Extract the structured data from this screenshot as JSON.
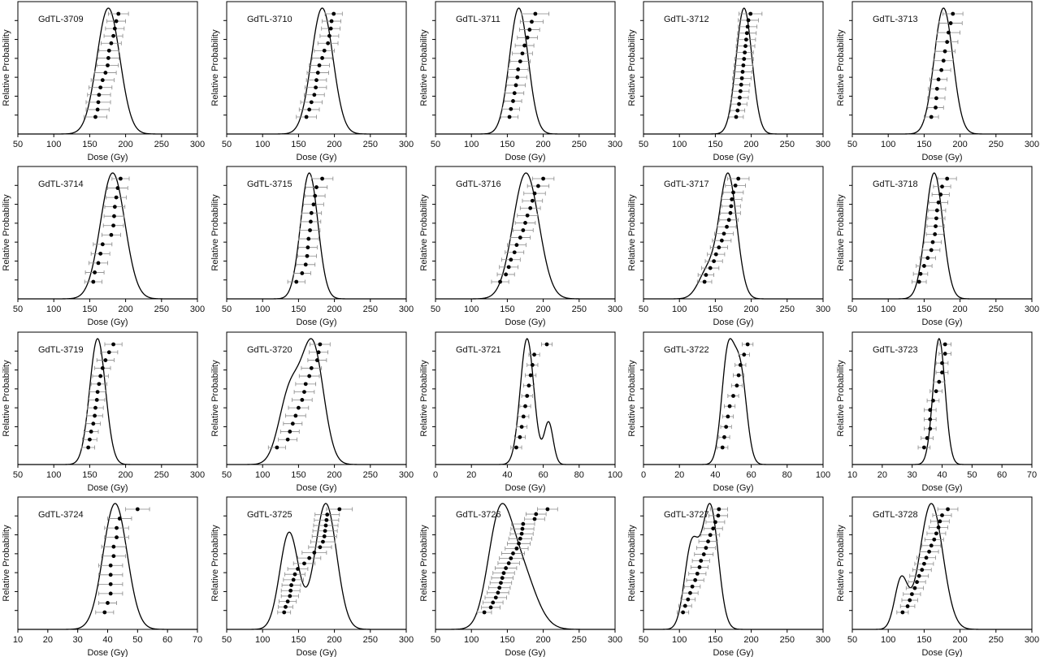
{
  "figure": {
    "xlabel": "Dose (Gy)",
    "ylabel": "Relative Probability"
  },
  "chart_data": [
    {
      "type": "scatter",
      "title": "GdTL-3709",
      "xlabel": "Dose (Gy)",
      "ylabel": "Relative Probability",
      "xlim": [
        50,
        300
      ],
      "xticks": [
        50,
        100,
        150,
        200,
        250,
        300
      ],
      "x": [
        190,
        187,
        185,
        183,
        180,
        177,
        176,
        175,
        172,
        168,
        165,
        163,
        162,
        161,
        158
      ],
      "err": [
        14,
        13,
        13,
        13,
        14,
        14,
        15,
        15,
        15,
        16,
        16,
        16,
        17,
        16,
        16
      ],
      "kde": {
        "peak": 175,
        "components": [
          {
            "mu": 176,
            "sigma": 16,
            "w": 1
          }
        ]
      }
    },
    {
      "type": "scatter",
      "title": "GdTL-3710",
      "xlabel": "Dose (Gy)",
      "ylabel": "Relative Probability",
      "xlim": [
        50,
        300
      ],
      "xticks": [
        50,
        100,
        150,
        200,
        250,
        300
      ],
      "x": [
        199,
        196,
        195,
        193,
        191,
        186,
        183,
        179,
        177,
        175,
        174,
        172,
        168,
        165,
        161
      ],
      "err": [
        12,
        13,
        13,
        13,
        14,
        14,
        14,
        14,
        15,
        14,
        15,
        14,
        15,
        14,
        14
      ],
      "kde": {
        "peak": 182,
        "components": [
          {
            "mu": 183,
            "sigma": 15,
            "w": 1
          }
        ]
      }
    },
    {
      "type": "scatter",
      "title": "GdTL-3711",
      "xlabel": "Dose (Gy)",
      "ylabel": "Relative Probability",
      "xlim": [
        50,
        300
      ],
      "xticks": [
        50,
        100,
        150,
        200,
        250,
        300
      ],
      "x": [
        189,
        184,
        181,
        178,
        174,
        171,
        168,
        165,
        164,
        162,
        160,
        158,
        155,
        153
      ],
      "err": [
        19,
        16,
        14,
        14,
        13,
        14,
        14,
        14,
        13,
        13,
        13,
        12,
        12,
        12
      ],
      "kde": {
        "peak": 166,
        "components": [
          {
            "mu": 166,
            "sigma": 13,
            "w": 1
          }
        ]
      }
    },
    {
      "type": "scatter",
      "title": "GdTL-3712",
      "xlabel": "Dose (Gy)",
      "ylabel": "Relative Probability",
      "xlim": [
        50,
        300
      ],
      "xticks": [
        50,
        100,
        150,
        200,
        250,
        300
      ],
      "x": [
        199,
        196,
        195,
        194,
        193,
        192,
        191,
        190,
        189,
        188,
        187,
        186,
        185,
        184,
        183,
        181,
        179
      ],
      "err": [
        16,
        14,
        13,
        13,
        13,
        13,
        12,
        13,
        13,
        13,
        13,
        12,
        12,
        12,
        11,
        10,
        10
      ],
      "kde": {
        "peak": 189,
        "components": [
          {
            "mu": 190,
            "sigma": 11,
            "w": 1
          }
        ]
      }
    },
    {
      "type": "scatter",
      "title": "GdTL-3713",
      "xlabel": "Dose (Gy)",
      "ylabel": "Relative Probability",
      "xlim": [
        50,
        300
      ],
      "xticks": [
        50,
        100,
        150,
        200,
        250,
        300
      ],
      "x": [
        190,
        187,
        184,
        182,
        179,
        177,
        174,
        170,
        168,
        167,
        166,
        160
      ],
      "err": [
        14,
        16,
        16,
        15,
        14,
        13,
        13,
        12,
        12,
        12,
        11,
        10
      ],
      "kde": {
        "peak": 177,
        "components": [
          {
            "mu": 177,
            "sigma": 13,
            "w": 1
          }
        ]
      }
    },
    {
      "type": "scatter",
      "title": "GdTL-3714",
      "xlabel": "Dose (Gy)",
      "ylabel": "Relative Probability",
      "xlim": [
        50,
        300
      ],
      "xticks": [
        50,
        100,
        150,
        200,
        250,
        300
      ],
      "x": [
        193,
        189,
        187,
        185,
        184,
        183,
        180,
        168,
        165,
        162,
        157,
        155
      ],
      "err": [
        12,
        14,
        14,
        14,
        14,
        14,
        13,
        13,
        13,
        13,
        13,
        12
      ],
      "kde": {
        "peak": 183,
        "components": [
          {
            "mu": 182,
            "sigma": 17,
            "w": 1
          }
        ]
      }
    },
    {
      "type": "scatter",
      "title": "GdTL-3715",
      "xlabel": "Dose (Gy)",
      "ylabel": "Relative Probability",
      "xlim": [
        50,
        300
      ],
      "xticks": [
        50,
        100,
        150,
        200,
        250,
        300
      ],
      "x": [
        183,
        175,
        173,
        171,
        168,
        167,
        166,
        164,
        163,
        162,
        160,
        155,
        147
      ],
      "err": [
        15,
        15,
        14,
        14,
        14,
        14,
        14,
        14,
        13,
        13,
        13,
        12,
        12
      ],
      "kde": {
        "peak": 164,
        "components": [
          {
            "mu": 165,
            "sigma": 12,
            "w": 1
          }
        ]
      }
    },
    {
      "type": "scatter",
      "title": "GdTL-3716",
      "xlabel": "Dose (Gy)",
      "ylabel": "Relative Probability",
      "xlim": [
        50,
        300
      ],
      "xticks": [
        50,
        100,
        150,
        200,
        250,
        300
      ],
      "x": [
        200,
        193,
        188,
        185,
        182,
        178,
        175,
        172,
        168,
        163,
        160,
        155,
        152,
        148,
        140
      ],
      "err": [
        15,
        15,
        15,
        14,
        14,
        14,
        14,
        14,
        14,
        13,
        13,
        13,
        13,
        12,
        12
      ],
      "kde": {
        "peak": 176,
        "components": [
          {
            "mu": 176,
            "sigma": 18,
            "w": 1
          }
        ]
      }
    },
    {
      "type": "scatter",
      "title": "GdTL-3717",
      "xlabel": "Dose (Gy)",
      "ylabel": "Relative Probability",
      "xlim": [
        50,
        300
      ],
      "xticks": [
        50,
        100,
        150,
        200,
        250,
        300
      ],
      "x": [
        182,
        178,
        175,
        173,
        172,
        171,
        169,
        166,
        162,
        159,
        155,
        151,
        148,
        143,
        137,
        135
      ],
      "err": [
        15,
        14,
        14,
        14,
        13,
        14,
        13,
        13,
        13,
        13,
        12,
        12,
        12,
        12,
        11,
        10
      ],
      "kde": {
        "peak": 166,
        "components": [
          {
            "mu": 168,
            "sigma": 12,
            "w": 0.8
          },
          {
            "mu": 140,
            "sigma": 13,
            "w": 0.2
          }
        ]
      }
    },
    {
      "type": "scatter",
      "title": "GdTL-3718",
      "xlabel": "Dose (Gy)",
      "ylabel": "Relative Probability",
      "xlim": [
        50,
        300
      ],
      "xticks": [
        50,
        100,
        150,
        200,
        250,
        300
      ],
      "x": [
        182,
        175,
        173,
        170,
        168,
        167,
        166,
        165,
        162,
        160,
        155,
        150,
        145,
        143
      ],
      "err": [
        13,
        12,
        12,
        13,
        12,
        12,
        12,
        12,
        12,
        12,
        11,
        11,
        10,
        10
      ],
      "kde": {
        "peak": 164,
        "components": [
          {
            "mu": 164,
            "sigma": 12,
            "w": 1
          }
        ]
      }
    },
    {
      "type": "scatter",
      "title": "GdTL-3719",
      "xlabel": "Dose (Gy)",
      "ylabel": "Relative Probability",
      "xlim": [
        50,
        300
      ],
      "xticks": [
        50,
        100,
        150,
        200,
        250,
        300
      ],
      "x": [
        183,
        177,
        172,
        168,
        165,
        163,
        161,
        160,
        158,
        157,
        155,
        152,
        150,
        148
      ],
      "err": [
        12,
        12,
        12,
        11,
        11,
        11,
        11,
        11,
        11,
        11,
        10,
        10,
        10,
        9
      ],
      "kde": {
        "peak": 161,
        "components": [
          {
            "mu": 161,
            "sigma": 11,
            "w": 1
          }
        ]
      }
    },
    {
      "type": "scatter",
      "title": "GdTL-3720",
      "xlabel": "Dose (Gy)",
      "ylabel": "Relative Probability",
      "xlim": [
        50,
        300
      ],
      "xticks": [
        50,
        100,
        150,
        200,
        250,
        300
      ],
      "x": [
        180,
        178,
        176,
        168,
        165,
        160,
        158,
        155,
        150,
        146,
        142,
        138,
        135,
        120
      ],
      "err": [
        14,
        13,
        13,
        14,
        14,
        14,
        14,
        14,
        14,
        14,
        13,
        13,
        13,
        12
      ],
      "kde": {
        "peak": 165,
        "components": [
          {
            "mu": 170,
            "sigma": 15,
            "w": 0.62
          },
          {
            "mu": 138,
            "sigma": 15,
            "w": 0.38
          }
        ]
      }
    },
    {
      "type": "scatter",
      "title": "GdTL-3721",
      "xlabel": "Dose (Gy)",
      "ylabel": "Relative Probability",
      "xlim": [
        0,
        100
      ],
      "xticks": [
        0,
        20,
        40,
        60,
        80,
        100
      ],
      "x": [
        62,
        55,
        54,
        53,
        52,
        51,
        50,
        49,
        48,
        47,
        45
      ],
      "err": [
        3,
        3,
        3,
        3,
        3,
        3,
        3,
        3,
        3,
        3,
        3
      ],
      "kde": {
        "peak": 51,
        "components": [
          {
            "mu": 51,
            "sigma": 3.8,
            "w": 0.82
          },
          {
            "mu": 63,
            "sigma": 2.5,
            "w": 0.18
          }
        ]
      }
    },
    {
      "type": "scatter",
      "title": "GdTL-3722",
      "xlabel": "Dose (Gy)",
      "ylabel": "Relative Probability",
      "xlim": [
        0,
        100
      ],
      "xticks": [
        0,
        20,
        40,
        60,
        80,
        100
      ],
      "x": [
        58,
        56,
        54,
        53,
        52,
        50,
        48,
        47,
        46,
        45,
        44
      ],
      "err": [
        3,
        3,
        3,
        3,
        3,
        3,
        3,
        3,
        3,
        3,
        3
      ],
      "kde": {
        "peak": 48,
        "components": [
          {
            "mu": 47,
            "sigma": 3.5,
            "w": 0.55
          },
          {
            "mu": 54,
            "sigma": 3.5,
            "w": 0.45
          }
        ]
      }
    },
    {
      "type": "scatter",
      "title": "GdTL-3723",
      "xlabel": "Dose (Gy)",
      "ylabel": "Relative Probability",
      "xlim": [
        10,
        70
      ],
      "xticks": [
        10,
        20,
        30,
        40,
        50,
        60,
        70
      ],
      "x": [
        41,
        41,
        40,
        40,
        39,
        38,
        37,
        36,
        36,
        36,
        35,
        34
      ],
      "err": [
        2,
        2,
        2,
        2,
        2,
        2,
        2,
        2,
        2,
        2,
        2,
        2
      ],
      "kde": {
        "peak": 39,
        "components": [
          {
            "mu": 39,
            "sigma": 2,
            "w": 1
          }
        ]
      }
    },
    {
      "type": "scatter",
      "title": "GdTL-3724",
      "xlabel": "Dose (Gy)",
      "ylabel": "Relative Probability",
      "xlim": [
        10,
        70
      ],
      "xticks": [
        10,
        20,
        30,
        40,
        50,
        60,
        70
      ],
      "x": [
        50,
        44,
        43,
        43,
        42,
        42,
        41,
        41,
        41,
        41,
        40,
        39
      ],
      "err": [
        4,
        4,
        4,
        4,
        4,
        4,
        4,
        4,
        4,
        4,
        3,
        3
      ],
      "kde": {
        "peak": 42,
        "components": [
          {
            "mu": 42.5,
            "sigma": 4,
            "w": 1
          }
        ]
      }
    },
    {
      "type": "scatter",
      "title": "GdTL-3725",
      "xlabel": "Dose (Gy)",
      "ylabel": "Relative Probability",
      "xlim": [
        50,
        300
      ],
      "xticks": [
        50,
        100,
        150,
        200,
        250,
        300
      ],
      "x": [
        207,
        190,
        189,
        188,
        187,
        186,
        184,
        180,
        172,
        165,
        158,
        149,
        145,
        143,
        140,
        139,
        138,
        135,
        132,
        130
      ],
      "err": [
        18,
        17,
        17,
        17,
        17,
        17,
        17,
        16,
        17,
        16,
        15,
        14,
        14,
        14,
        13,
        13,
        12,
        12,
        10,
        9
      ],
      "kde": {
        "peak": 187,
        "components": [
          {
            "mu": 137,
            "sigma": 13,
            "w": 0.4
          },
          {
            "mu": 188,
            "sigma": 15,
            "w": 0.6
          }
        ]
      }
    },
    {
      "type": "scatter",
      "title": "GdTL-3726",
      "xlabel": "Dose (Gy)",
      "ylabel": "Relative Probability",
      "xlim": [
        50,
        300
      ],
      "xticks": [
        50,
        100,
        150,
        200,
        250,
        300
      ],
      "x": [
        206,
        190,
        188,
        172,
        171,
        170,
        168,
        166,
        163,
        158,
        155,
        152,
        148,
        145,
        143,
        141,
        139,
        137,
        134,
        130,
        127,
        118
      ],
      "err": [
        14,
        14,
        14,
        16,
        16,
        16,
        16,
        16,
        16,
        16,
        16,
        15,
        15,
        15,
        15,
        15,
        15,
        15,
        15,
        14,
        13,
        10
      ],
      "kde": {
        "peak": 147,
        "components": [
          {
            "mu": 138,
            "sigma": 16,
            "w": 0.5
          },
          {
            "mu": 165,
            "sigma": 22,
            "w": 0.5
          }
        ]
      }
    },
    {
      "type": "scatter",
      "title": "GdTL-3727",
      "xlabel": "Dose (Gy)",
      "ylabel": "Relative Probability",
      "xlim": [
        50,
        300
      ],
      "xticks": [
        50,
        100,
        150,
        200,
        250,
        300
      ],
      "x": [
        155,
        154,
        150,
        147,
        143,
        140,
        137,
        134,
        130,
        128,
        125,
        122,
        118,
        115,
        112,
        108,
        105
      ],
      "err": [
        12,
        13,
        13,
        13,
        13,
        13,
        13,
        13,
        12,
        12,
        12,
        12,
        11,
        11,
        10,
        9,
        8
      ],
      "kde": {
        "peak": 138,
        "components": [
          {
            "mu": 117,
            "sigma": 10,
            "w": 0.38
          },
          {
            "mu": 143,
            "sigma": 11,
            "w": 0.62
          }
        ]
      }
    },
    {
      "type": "scatter",
      "title": "GdTL-3728",
      "xlabel": "Dose (Gy)",
      "ylabel": "Relative Probability",
      "xlim": [
        50,
        300
      ],
      "xticks": [
        50,
        100,
        150,
        200,
        250,
        300
      ],
      "x": [
        183,
        175,
        172,
        170,
        167,
        164,
        160,
        157,
        153,
        150,
        147,
        143,
        140,
        137,
        133,
        130,
        127,
        120
      ],
      "err": [
        14,
        13,
        13,
        13,
        13,
        13,
        13,
        13,
        13,
        13,
        13,
        13,
        12,
        12,
        12,
        11,
        10,
        8
      ],
      "kde": {
        "peak": 158,
        "components": [
          {
            "mu": 118,
            "sigma": 9,
            "w": 0.18
          },
          {
            "mu": 160,
            "sigma": 16,
            "w": 0.82
          }
        ]
      }
    }
  ]
}
